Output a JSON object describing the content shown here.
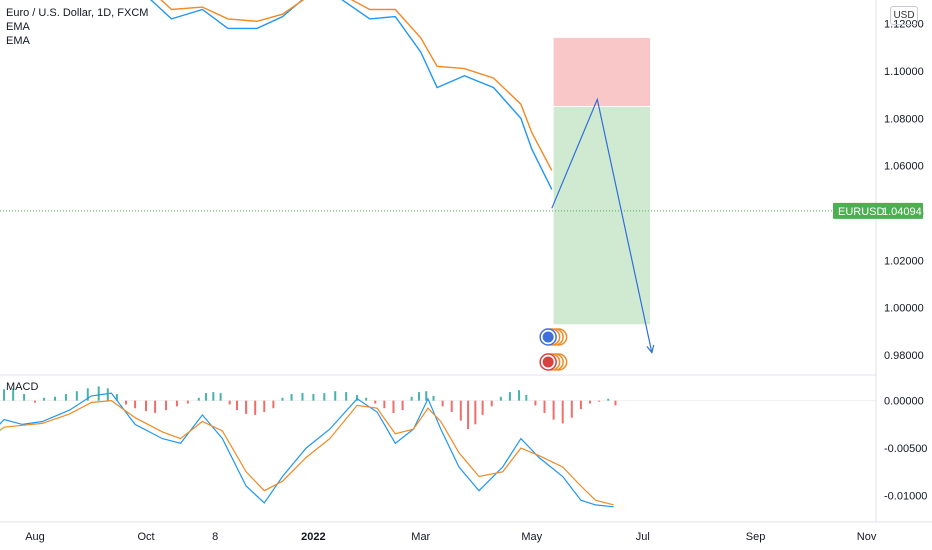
{
  "header": {
    "title": "Euro / U.S. Dollar, 1D, FXCM",
    "indicator_1": "EMA",
    "indicator_2": "EMA",
    "currency_button": "USD"
  },
  "price_label": {
    "symbol": "EURUSD",
    "value": "1.04094",
    "color": "#4caf50"
  },
  "macd_label": "MACD",
  "chart_data": [
    {
      "type": "line",
      "title": "Euro / U.S. Dollar, 1D, FXCM",
      "ylim": [
        0.972,
        1.13
      ],
      "y_ticks": [
        "1.12000",
        "1.10000",
        "1.08000",
        "1.06000",
        "1.04000",
        "1.02000",
        "1.00000",
        "0.98000"
      ],
      "current_price": 1.04094,
      "series": [
        {
          "color": "#2196f3",
          "points": [
            [
              "2021-10-01",
              1.132
            ],
            [
              "2021-10-15",
              1.122
            ],
            [
              "2021-11-01",
              1.126
            ],
            [
              "2021-11-15",
              1.118
            ],
            [
              "2021-12-01",
              1.118
            ],
            [
              "2021-12-15",
              1.123
            ],
            [
              "2022-01-01",
              1.134
            ],
            [
              "2022-01-15",
              1.131
            ],
            [
              "2022-02-01",
              1.122
            ],
            [
              "2022-02-15",
              1.123
            ],
            [
              "2022-03-01",
              1.108
            ],
            [
              "2022-03-10",
              1.093
            ],
            [
              "2022-03-25",
              1.098
            ],
            [
              "2022-04-10",
              1.093
            ],
            [
              "2022-04-25",
              1.08
            ],
            [
              "2022-05-01",
              1.067
            ],
            [
              "2022-05-12",
              1.05
            ]
          ]
        },
        {
          "color": "#f08a24",
          "points": [
            [
              "2021-10-01",
              1.136
            ],
            [
              "2021-10-15",
              1.126
            ],
            [
              "2021-11-01",
              1.127
            ],
            [
              "2021-11-15",
              1.122
            ],
            [
              "2021-12-01",
              1.121
            ],
            [
              "2021-12-15",
              1.124
            ],
            [
              "2022-01-01",
              1.133
            ],
            [
              "2022-01-15",
              1.133
            ],
            [
              "2022-02-01",
              1.126
            ],
            [
              "2022-02-15",
              1.126
            ],
            [
              "2022-03-01",
              1.114
            ],
            [
              "2022-03-10",
              1.102
            ],
            [
              "2022-03-25",
              1.101
            ],
            [
              "2022-04-10",
              1.097
            ],
            [
              "2022-04-25",
              1.086
            ],
            [
              "2022-05-01",
              1.074
            ],
            [
              "2022-05-12",
              1.058
            ]
          ]
        }
      ],
      "projection": [
        [
          "2022-05-12",
          1.042
        ],
        [
          "2022-06-06",
          1.088
        ],
        [
          "2022-07-06",
          0.981
        ]
      ],
      "position": {
        "start": "2022-05-13",
        "end": "2022-07-05",
        "entry": 1.085,
        "stop": 1.114,
        "target": 0.993,
        "stop_color": "#f7b9b9",
        "target_color": "#c8e6c9"
      },
      "x_ticks": [
        {
          "label": "Aug",
          "date": "2021-08-01"
        },
        {
          "label": "Oct",
          "date": "2021-10-01"
        },
        {
          "label": "8",
          "date": "2021-11-08"
        },
        {
          "label": "2022",
          "date": "2022-01-01"
        },
        {
          "label": "Mar",
          "date": "2022-03-01"
        },
        {
          "label": "May",
          "date": "2022-05-01"
        },
        {
          "label": "Jul",
          "date": "2022-07-01"
        },
        {
          "label": "Sep",
          "date": "2022-09-01"
        },
        {
          "label": "Nov",
          "date": "2022-11-01"
        }
      ]
    },
    {
      "type": "bar",
      "title": "MACD",
      "ylim": [
        -0.0128,
        0.0026
      ],
      "y_ticks": [
        "0.00000",
        "-0.00500",
        "-0.01000"
      ],
      "histogram": [
        [
          "2021-07-01",
          0.0002
        ],
        [
          "2021-07-08",
          0.0005
        ],
        [
          "2021-07-15",
          0.0012
        ],
        [
          "2021-07-20",
          0.0013
        ],
        [
          "2021-07-26",
          0.0007
        ],
        [
          "2021-08-01",
          -0.0002
        ],
        [
          "2021-08-06",
          0.0003
        ],
        [
          "2021-08-12",
          0.0004
        ],
        [
          "2021-08-18",
          0.0007
        ],
        [
          "2021-08-24",
          0.001
        ],
        [
          "2021-08-30",
          0.0013
        ],
        [
          "2021-09-05",
          0.0015
        ],
        [
          "2021-09-10",
          0.0013
        ],
        [
          "2021-09-15",
          0.0007
        ],
        [
          "2021-09-20",
          -0.0004
        ],
        [
          "2021-09-25",
          -0.0008
        ],
        [
          "2021-10-01",
          -0.0011
        ],
        [
          "2021-10-06",
          -0.0013
        ],
        [
          "2021-10-12",
          -0.001
        ],
        [
          "2021-10-18",
          -0.0006
        ],
        [
          "2021-10-24",
          -0.0003
        ],
        [
          "2021-10-30",
          0.0003
        ],
        [
          "2021-11-03",
          0.0008
        ],
        [
          "2021-11-07",
          0.0009
        ],
        [
          "2021-11-11",
          0.0008
        ],
        [
          "2021-11-16",
          -0.0004
        ],
        [
          "2021-11-20",
          -0.001
        ],
        [
          "2021-11-25",
          -0.0014
        ],
        [
          "2021-11-30",
          -0.0015
        ],
        [
          "2021-12-05",
          -0.0012
        ],
        [
          "2021-12-10",
          -0.0008
        ],
        [
          "2021-12-15",
          0.0003
        ],
        [
          "2021-12-20",
          0.0007
        ],
        [
          "2021-12-26",
          0.0008
        ],
        [
          "2022-01-01",
          0.0007
        ],
        [
          "2022-01-07",
          0.0008
        ],
        [
          "2022-01-13",
          0.001
        ],
        [
          "2022-01-19",
          0.0009
        ],
        [
          "2022-01-25",
          0.0006
        ],
        [
          "2022-01-30",
          0.0003
        ],
        [
          "2022-02-04",
          -0.0003
        ],
        [
          "2022-02-09",
          -0.0008
        ],
        [
          "2022-02-14",
          -0.0013
        ],
        [
          "2022-02-19",
          -0.001
        ],
        [
          "2022-02-24",
          0.0004
        ],
        [
          "2022-02-28",
          0.0009
        ],
        [
          "2022-03-04",
          0.001
        ],
        [
          "2022-03-08",
          0.0005
        ],
        [
          "2022-03-13",
          -0.0006
        ],
        [
          "2022-03-18",
          -0.0012
        ],
        [
          "2022-03-23",
          -0.0021
        ],
        [
          "2022-03-27",
          -0.003
        ],
        [
          "2022-03-31",
          -0.0025
        ],
        [
          "2022-04-04",
          -0.0015
        ],
        [
          "2022-04-09",
          -0.0006
        ],
        [
          "2022-04-14",
          0.0004
        ],
        [
          "2022-04-19",
          0.0009
        ],
        [
          "2022-04-24",
          0.0011
        ],
        [
          "2022-04-28",
          0.0006
        ],
        [
          "2022-05-03",
          -0.0005
        ],
        [
          "2022-05-08",
          -0.0013
        ],
        [
          "2022-05-13",
          -0.002
        ],
        [
          "2022-05-18",
          -0.0024
        ],
        [
          "2022-05-23",
          -0.0018
        ],
        [
          "2022-05-28",
          -0.0009
        ],
        [
          "2022-06-02",
          -0.0003
        ],
        [
          "2022-06-07",
          -0.0001
        ],
        [
          "2022-06-12",
          0.0002
        ],
        [
          "2022-06-16",
          -0.0005
        ]
      ],
      "series": [
        {
          "color": "#2196f3",
          "points": [
            [
              "2021-06-01",
              -0.0055
            ],
            [
              "2021-06-20",
              -0.0052
            ],
            [
              "2021-07-05",
              -0.004
            ],
            [
              "2021-07-15",
              -0.002
            ],
            [
              "2021-07-25",
              -0.0025
            ],
            [
              "2021-08-05",
              -0.0022
            ],
            [
              "2021-08-20",
              -0.001
            ],
            [
              "2021-09-01",
              0.0005
            ],
            [
              "2021-09-12",
              0.0008
            ],
            [
              "2021-09-25",
              -0.0025
            ],
            [
              "2021-10-10",
              -0.004
            ],
            [
              "2021-10-20",
              -0.0045
            ],
            [
              "2021-11-01",
              -0.0015
            ],
            [
              "2021-11-12",
              -0.004
            ],
            [
              "2021-11-25",
              -0.009
            ],
            [
              "2021-12-05",
              -0.0108
            ],
            [
              "2021-12-15",
              -0.008
            ],
            [
              "2021-12-28",
              -0.005
            ],
            [
              "2022-01-10",
              -0.003
            ],
            [
              "2022-01-25",
              0.0002
            ],
            [
              "2022-02-05",
              -0.0012
            ],
            [
              "2022-02-15",
              -0.0045
            ],
            [
              "2022-02-25",
              -0.003
            ],
            [
              "2022-03-05",
              0.0002
            ],
            [
              "2022-03-12",
              -0.003
            ],
            [
              "2022-03-22",
              -0.007
            ],
            [
              "2022-04-02",
              -0.0095
            ],
            [
              "2022-04-15",
              -0.007
            ],
            [
              "2022-04-25",
              -0.004
            ],
            [
              "2022-05-05",
              -0.006
            ],
            [
              "2022-05-18",
              -0.008
            ],
            [
              "2022-05-28",
              -0.0105
            ],
            [
              "2022-06-05",
              -0.011
            ],
            [
              "2022-06-15",
              -0.0112
            ]
          ]
        },
        {
          "color": "#f08a24",
          "points": [
            [
              "2021-06-01",
              -0.005
            ],
            [
              "2021-06-20",
              -0.0052
            ],
            [
              "2021-07-05",
              -0.0042
            ],
            [
              "2021-07-15",
              -0.0028
            ],
            [
              "2021-07-25",
              -0.0026
            ],
            [
              "2021-08-05",
              -0.0024
            ],
            [
              "2021-08-20",
              -0.0014
            ],
            [
              "2021-09-01",
              -0.0002
            ],
            [
              "2021-09-12",
              0.0
            ],
            [
              "2021-09-25",
              -0.0018
            ],
            [
              "2021-10-10",
              -0.0033
            ],
            [
              "2021-10-20",
              -0.004
            ],
            [
              "2021-11-01",
              -0.0022
            ],
            [
              "2021-11-12",
              -0.0032
            ],
            [
              "2021-11-25",
              -0.0075
            ],
            [
              "2021-12-05",
              -0.0095
            ],
            [
              "2021-12-15",
              -0.0085
            ],
            [
              "2021-12-28",
              -0.006
            ],
            [
              "2022-01-10",
              -0.004
            ],
            [
              "2022-01-25",
              -0.0005
            ],
            [
              "2022-02-05",
              -0.0008
            ],
            [
              "2022-02-15",
              -0.0035
            ],
            [
              "2022-02-25",
              -0.003
            ],
            [
              "2022-03-05",
              -0.0008
            ],
            [
              "2022-03-12",
              -0.0022
            ],
            [
              "2022-03-22",
              -0.0055
            ],
            [
              "2022-04-02",
              -0.008
            ],
            [
              "2022-04-15",
              -0.0075
            ],
            [
              "2022-04-25",
              -0.005
            ],
            [
              "2022-05-05",
              -0.0058
            ],
            [
              "2022-05-18",
              -0.007
            ],
            [
              "2022-05-28",
              -0.009
            ],
            [
              "2022-06-05",
              -0.0105
            ],
            [
              "2022-06-15",
              -0.011
            ]
          ]
        }
      ]
    }
  ]
}
